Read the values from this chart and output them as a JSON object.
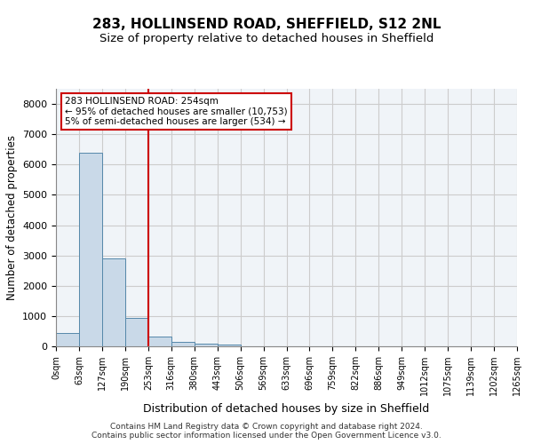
{
  "title_line1": "283, HOLLINSEND ROAD, SHEFFIELD, S12 2NL",
  "title_line2": "Size of property relative to detached houses in Sheffield",
  "xlabel": "Distribution of detached houses by size in Sheffield",
  "ylabel": "Number of detached properties",
  "footer_line1": "Contains HM Land Registry data © Crown copyright and database right 2024.",
  "footer_line2": "Contains public sector information licensed under the Open Government Licence v3.0.",
  "bin_labels": [
    "0sqm",
    "63sqm",
    "127sqm",
    "190sqm",
    "253sqm",
    "316sqm",
    "380sqm",
    "443sqm",
    "506sqm",
    "569sqm",
    "633sqm",
    "696sqm",
    "759sqm",
    "822sqm",
    "886sqm",
    "949sqm",
    "1012sqm",
    "1075sqm",
    "1139sqm",
    "1202sqm",
    "1265sqm"
  ],
  "bar_values": [
    450,
    6400,
    2900,
    950,
    330,
    150,
    90,
    50,
    0,
    0,
    0,
    0,
    0,
    0,
    0,
    0,
    0,
    0,
    0,
    0
  ],
  "bar_color": "#c9d9e8",
  "bar_edge_color": "#5588aa",
  "vline_x": 4,
  "vline_color": "#cc0000",
  "ylim": [
    0,
    8500
  ],
  "yticks": [
    0,
    1000,
    2000,
    3000,
    4000,
    5000,
    6000,
    7000,
    8000
  ],
  "annotation_text": "283 HOLLINSEND ROAD: 254sqm\n← 95% of detached houses are smaller (10,753)\n5% of semi-detached houses are larger (534) →",
  "annotation_box_color": "#cc0000",
  "grid_color": "#cccccc",
  "background_color": "#f0f4f8"
}
